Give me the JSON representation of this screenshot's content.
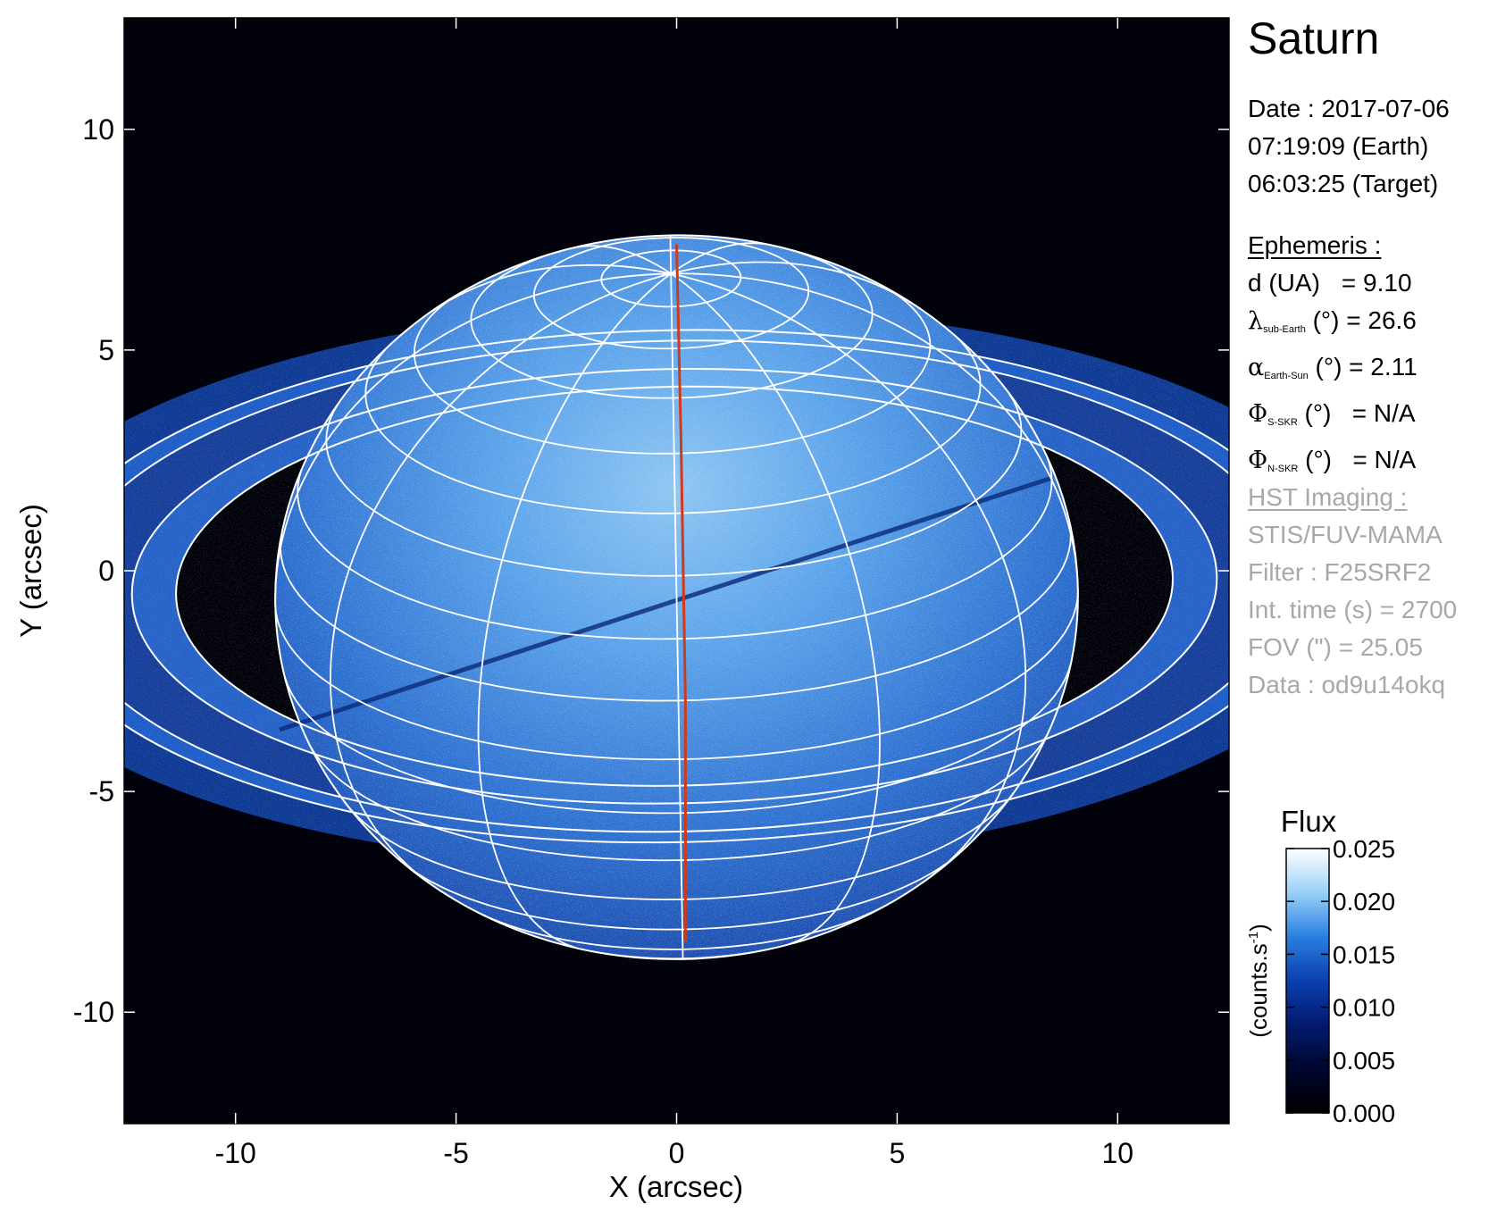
{
  "chart_data": {
    "type": "heatmap",
    "title": "Saturn",
    "xlabel": "X (arcsec)",
    "ylabel": "Y (arcsec)",
    "xlim": [
      -12.525,
      12.525
    ],
    "ylim": [
      -12.525,
      12.525
    ],
    "xticks": [
      -10,
      -5,
      0,
      5,
      10
    ],
    "yticks": [
      -10,
      -5,
      0,
      5,
      10
    ],
    "planet": {
      "center": [
        0,
        -0.6
      ],
      "equatorial_radius": 9.1,
      "polar_radius": 8.2,
      "grid_lat_step_deg": 10,
      "grid_lon_step_deg": 30,
      "sub_earth_lat_deg": 26.6,
      "tilt_deg": -1.0
    },
    "rings": {
      "center": [
        -0.05,
        -0.35
      ],
      "radii": [
        11.3,
        12.3,
        13.9,
        14.5
      ],
      "axis_ratio": 0.4,
      "tilt_deg": -1.0
    },
    "red_meridian": [
      [
        0,
        7.4
      ],
      [
        0.1,
        3.0
      ],
      [
        0.2,
        -3.0
      ],
      [
        0.2,
        -8.4
      ]
    ],
    "colorbar": {
      "title": "Flux",
      "label": "(counts.s",
      "label_sup": "-1",
      "label_close": ")",
      "range": [
        0.0,
        0.025
      ],
      "ticks": [
        "0.000",
        "0.005",
        "0.010",
        "0.015",
        "0.020",
        "0.025"
      ],
      "colormap": [
        "#000000",
        "#00062e",
        "#021a6e",
        "#0a3fb0",
        "#2a7fe0",
        "#9ad0f8",
        "#ffffff"
      ]
    }
  },
  "info": {
    "date_line": "Date : 2017-07-06",
    "earth_line": "07:19:09 (Earth)",
    "target_line": "06:03:25 (Target)"
  },
  "ephemeris": {
    "header": "Ephemeris :",
    "d_label": "d (UA)",
    "d_value": "= 9.10",
    "lambda_sym": "λ",
    "lambda_sub": "sub-Earth",
    "lambda_value": "(°) = 26.6",
    "alpha_sym": "α",
    "alpha_sub": "Earth-Sun",
    "alpha_value": "(°) = 2.11",
    "phi_sym": "Φ",
    "phi_s_sub": "S-SKR",
    "phi_s_value": "(°)   = N/A",
    "phi_n_sub": "N-SKR",
    "phi_n_value": "(°)   = N/A"
  },
  "hst": {
    "header": "HST Imaging :",
    "instrument": "STIS/FUV-MAMA",
    "filter": "Filter : F25SRF2",
    "int_time": "Int. time (s) = 2700",
    "fov": "FOV (\") = 25.05",
    "data": "Data : od9u14okq"
  }
}
